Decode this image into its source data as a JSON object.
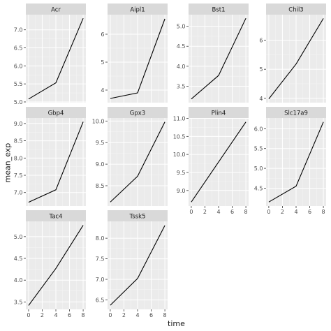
{
  "chart_data": {
    "type": "line",
    "xlabel": "time",
    "ylabel": "mean_exp",
    "grid": true,
    "x_ticks": [
      0,
      2,
      4,
      6,
      8
    ],
    "panels": [
      {
        "name": "Acr",
        "x": [
          0,
          4,
          8
        ],
        "y": [
          5.08,
          5.53,
          7.32
        ],
        "ylim": [
          4.98,
          7.42
        ],
        "yticks": [
          5.0,
          5.5,
          6.0,
          6.5,
          7.0
        ],
        "ytick_labels": [
          "5.0",
          "5.5",
          "6.0",
          "6.5",
          "7.0"
        ]
      },
      {
        "name": "Aipl1",
        "x": [
          0,
          4,
          8
        ],
        "y": [
          3.7,
          3.9,
          6.55
        ],
        "ylim": [
          3.55,
          6.7
        ],
        "yticks": [
          4,
          5,
          6
        ],
        "ytick_labels": [
          "4",
          "5",
          "6"
        ]
      },
      {
        "name": "Bst1",
        "x": [
          0,
          4,
          8
        ],
        "y": [
          3.18,
          3.77,
          5.2
        ],
        "ylim": [
          3.09,
          5.29
        ],
        "yticks": [
          3.5,
          4.0,
          4.5,
          5.0
        ],
        "ytick_labels": [
          "3.5",
          "4.0",
          "4.5",
          "5.0"
        ]
      },
      {
        "name": "Chil3",
        "x": [
          0,
          4,
          8
        ],
        "y": [
          3.98,
          5.18,
          6.75
        ],
        "ylim": [
          3.85,
          6.88
        ],
        "yticks": [
          4,
          5,
          6
        ],
        "ytick_labels": [
          "4",
          "5",
          "6"
        ]
      },
      {
        "name": "Gbp4",
        "x": [
          0,
          4,
          8
        ],
        "y": [
          6.72,
          7.08,
          9.05
        ],
        "ylim": [
          6.61,
          9.16
        ],
        "yticks": [
          7.0,
          7.5,
          8.0,
          8.5,
          9.0
        ],
        "ytick_labels": [
          "7.0",
          "7.5",
          "8.0",
          "8.5",
          "9.0"
        ]
      },
      {
        "name": "Gpx3",
        "x": [
          0,
          4,
          8
        ],
        "y": [
          8.12,
          8.72,
          9.98
        ],
        "ylim": [
          8.03,
          10.07
        ],
        "yticks": [
          8.5,
          9.0,
          9.5,
          10.0
        ],
        "ytick_labels": [
          "8.5",
          "9.0",
          "9.5",
          "10.0"
        ]
      },
      {
        "name": "Plin4",
        "x": [
          0,
          8
        ],
        "y": [
          8.68,
          10.9
        ],
        "ylim": [
          8.57,
          11.01
        ],
        "yticks": [
          9.0,
          9.5,
          10.0,
          10.5,
          11.0
        ],
        "ytick_labels": [
          "9.0",
          "9.5",
          "10.0",
          "10.5",
          "11.0"
        ]
      },
      {
        "name": "Slc17a9",
        "x": [
          0,
          4,
          8
        ],
        "y": [
          4.15,
          4.55,
          6.17
        ],
        "ylim": [
          4.05,
          6.27
        ],
        "yticks": [
          4.5,
          5.0,
          5.5,
          6.0
        ],
        "ytick_labels": [
          "4.5",
          "5.0",
          "5.5",
          "6.0"
        ]
      },
      {
        "name": "Tac4",
        "x": [
          0,
          4,
          8
        ],
        "y": [
          3.42,
          4.27,
          5.26
        ],
        "ylim": [
          3.33,
          5.35
        ],
        "yticks": [
          3.5,
          4.0,
          4.5,
          5.0
        ],
        "ytick_labels": [
          "3.5",
          "4.0",
          "4.5",
          "5.0"
        ]
      },
      {
        "name": "Tssk5",
        "x": [
          0,
          4,
          8
        ],
        "y": [
          6.37,
          7.02,
          8.31
        ],
        "ylim": [
          6.27,
          8.41
        ],
        "yticks": [
          6.5,
          7.0,
          7.5,
          8.0
        ],
        "ytick_labels": [
          "6.5",
          "7.0",
          "7.5",
          "8.0"
        ]
      }
    ]
  }
}
